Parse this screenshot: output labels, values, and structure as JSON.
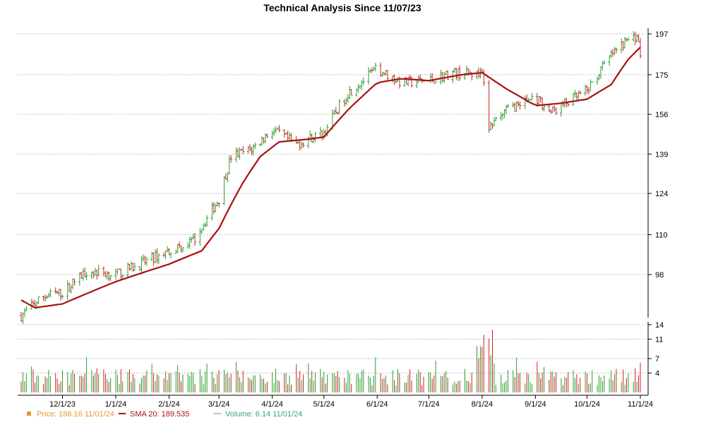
{
  "chart_data": {
    "type": "candlestick",
    "title": "Technical Analysis Since 11/07/23",
    "colors": {
      "up": "#2a9d2a",
      "down": "#cc2222",
      "sma": "#aa1111",
      "price_legend": "#e39a2f",
      "volume_legend": "#40a090",
      "grid": "#bfbfbf"
    },
    "price_axis": {
      "ticks": [
        197,
        175,
        156,
        139,
        124,
        110,
        98
      ],
      "log_scale": true,
      "range": [
        83,
        203
      ]
    },
    "volume_axis": {
      "ticks": [
        14,
        11,
        7,
        4
      ],
      "range": [
        0,
        14
      ]
    },
    "x_axis": {
      "start": "2023-11-07",
      "end": "2024-11-01",
      "ticks": [
        {
          "label": "12/1/23",
          "date": "2023-12-01"
        },
        {
          "label": "1/1/24",
          "date": "2024-01-01"
        },
        {
          "label": "2/1/24",
          "date": "2024-02-01"
        },
        {
          "label": "3/1/24",
          "date": "2024-03-01"
        },
        {
          "label": "4/1/24",
          "date": "2024-04-01"
        },
        {
          "label": "5/1/24",
          "date": "2024-05-01"
        },
        {
          "label": "6/1/24",
          "date": "2024-06-01"
        },
        {
          "label": "7/1/24",
          "date": "2024-07-01"
        },
        {
          "label": "8/1/24",
          "date": "2024-08-01"
        },
        {
          "label": "9/1/24",
          "date": "2024-09-01"
        },
        {
          "label": "10/1/24",
          "date": "2024-10-01"
        },
        {
          "label": "11/1/24",
          "date": "2024-11-01"
        }
      ]
    },
    "price_key_points": [
      {
        "date": "2023-11-07",
        "close": 87
      },
      {
        "date": "2023-11-20",
        "close": 92
      },
      {
        "date": "2023-12-01",
        "close": 93
      },
      {
        "date": "2023-12-15",
        "close": 99
      },
      {
        "date": "2024-01-01",
        "close": 98
      },
      {
        "date": "2024-01-15",
        "close": 101
      },
      {
        "date": "2024-02-01",
        "close": 105
      },
      {
        "date": "2024-02-15",
        "close": 108
      },
      {
        "date": "2024-03-01",
        "close": 122
      },
      {
        "date": "2024-03-08",
        "close": 138
      },
      {
        "date": "2024-03-20",
        "close": 141
      },
      {
        "date": "2024-04-01",
        "close": 149
      },
      {
        "date": "2024-04-15",
        "close": 143
      },
      {
        "date": "2024-05-01",
        "close": 148
      },
      {
        "date": "2024-05-15",
        "close": 166
      },
      {
        "date": "2024-06-01",
        "close": 178
      },
      {
        "date": "2024-06-15",
        "close": 171
      },
      {
        "date": "2024-07-01",
        "close": 172
      },
      {
        "date": "2024-07-15",
        "close": 176
      },
      {
        "date": "2024-08-01",
        "close": 175
      },
      {
        "date": "2024-08-05",
        "close": 150
      },
      {
        "date": "2024-08-15",
        "close": 158
      },
      {
        "date": "2024-09-01",
        "close": 164
      },
      {
        "date": "2024-09-10",
        "close": 157
      },
      {
        "date": "2024-10-01",
        "close": 167
      },
      {
        "date": "2024-10-15",
        "close": 185
      },
      {
        "date": "2024-10-25",
        "close": 194
      },
      {
        "date": "2024-10-30",
        "close": 196
      },
      {
        "date": "2024-11-01",
        "close": 186.16
      }
    ],
    "sma_key_points": [
      {
        "date": "2023-11-07",
        "value": 91
      },
      {
        "date": "2023-11-15",
        "value": 89
      },
      {
        "date": "2023-12-01",
        "value": 90
      },
      {
        "date": "2024-01-01",
        "value": 96
      },
      {
        "date": "2024-02-01",
        "value": 101
      },
      {
        "date": "2024-02-20",
        "value": 105
      },
      {
        "date": "2024-03-01",
        "value": 112
      },
      {
        "date": "2024-03-15",
        "value": 128
      },
      {
        "date": "2024-03-25",
        "value": 138
      },
      {
        "date": "2024-04-05",
        "value": 144
      },
      {
        "date": "2024-04-20",
        "value": 145
      },
      {
        "date": "2024-05-01",
        "value": 146
      },
      {
        "date": "2024-05-15",
        "value": 158
      },
      {
        "date": "2024-06-01",
        "value": 171
      },
      {
        "date": "2024-06-15",
        "value": 173
      },
      {
        "date": "2024-07-01",
        "value": 172
      },
      {
        "date": "2024-07-20",
        "value": 175
      },
      {
        "date": "2024-08-01",
        "value": 176
      },
      {
        "date": "2024-08-15",
        "value": 168
      },
      {
        "date": "2024-09-01",
        "value": 160
      },
      {
        "date": "2024-09-15",
        "value": 161
      },
      {
        "date": "2024-10-01",
        "value": 163
      },
      {
        "date": "2024-10-15",
        "value": 170
      },
      {
        "date": "2024-10-25",
        "value": 183
      },
      {
        "date": "2024-11-01",
        "value": 189.535
      }
    ],
    "legend": [
      {
        "name": "price",
        "label": "Price: 186.16  11/01/24",
        "color": "#e39a2f",
        "marker": "square"
      },
      {
        "name": "sma",
        "label": "SMA 20: 189.535",
        "color": "#aa1111",
        "marker": "line"
      },
      {
        "name": "volume",
        "label": "Volume: 6.14  11/01/24",
        "color": "#40a090",
        "marker": "line"
      }
    ]
  }
}
